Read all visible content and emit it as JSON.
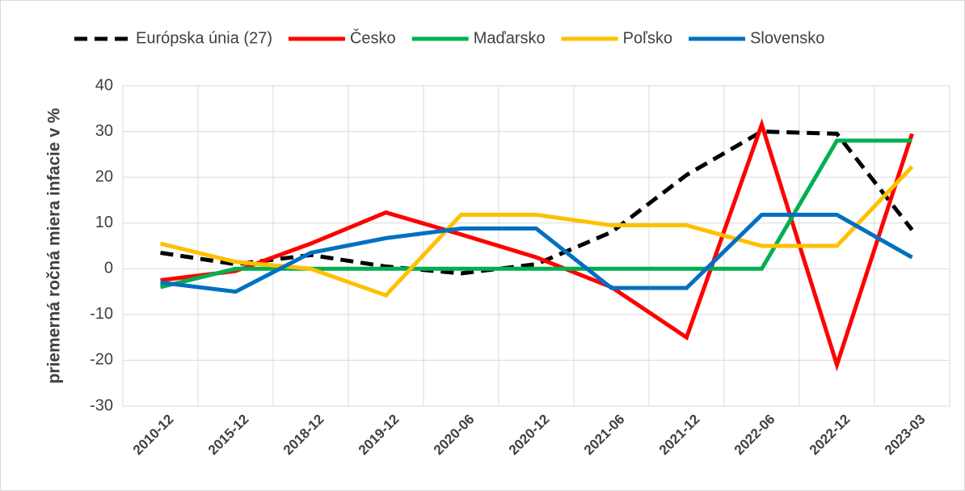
{
  "chart_data": {
    "type": "line",
    "ylabel": "priemerná ročná miera infacie v %",
    "categories": [
      "2010-12",
      "2015-12",
      "2018-12",
      "2019-12",
      "2020-06",
      "2020-12",
      "2021-06",
      "2021-12",
      "2022-06",
      "2022-12",
      "2023-03"
    ],
    "series": [
      {
        "name": "Európska únia (27)",
        "color": "#000000",
        "dashed": true,
        "values": [
          3.5,
          1,
          3,
          0.5,
          -1,
          1,
          8,
          20.5,
          30,
          29.5,
          8.5
        ]
      },
      {
        "name": "Česko",
        "color": "#ff0000",
        "values": [
          -2.5,
          -0.5,
          5.5,
          12.3,
          7.5,
          2.5,
          -4,
          -15,
          31.5,
          -21,
          29.5
        ]
      },
      {
        "name": "Maďarsko",
        "color": "#00b050",
        "values": [
          -4,
          0,
          0,
          0,
          0,
          0,
          0,
          0,
          0,
          28,
          28
        ]
      },
      {
        "name": "Poľsko",
        "color": "#ffc000",
        "values": [
          5.5,
          1.5,
          0,
          -5.8,
          11.8,
          11.8,
          9.5,
          9.5,
          5,
          5,
          22.3
        ]
      },
      {
        "name": "Slovensko",
        "color": "#0070c0",
        "values": [
          -3,
          -5,
          3.5,
          6.7,
          8.8,
          8.8,
          -4.2,
          -4.2,
          11.8,
          11.8,
          2.5
        ]
      }
    ],
    "ylim": [
      -30,
      40
    ],
    "yticks": [
      -30,
      -20,
      -10,
      0,
      10,
      20,
      30,
      40
    ],
    "grid": true,
    "legend": "top"
  }
}
